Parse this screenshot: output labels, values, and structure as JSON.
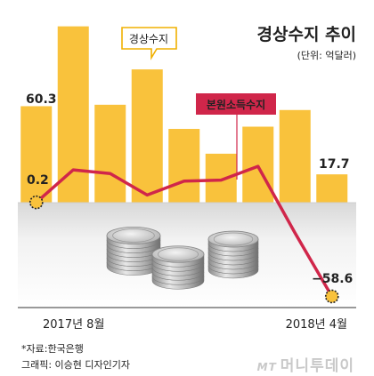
{
  "chart_data": {
    "type": "bar",
    "title": "경상수지 추이",
    "unit": "(단위: 억달러)",
    "x_start": "2017년 8월",
    "x_end": "2018년 4월",
    "ylim": [
      -75,
      120
    ],
    "series": [
      {
        "name": "경상수지",
        "type": "bar",
        "color": "#f9c23c",
        "values": [
          60.3,
          110.2,
          61.2,
          83.3,
          46.1,
          30.6,
          47.5,
          57.9,
          17.7
        ]
      },
      {
        "name": "본원소득수지",
        "type": "line",
        "color": "#d0264a",
        "values": [
          0.2,
          20.5,
          18.2,
          4.8,
          13.5,
          14.1,
          22.7,
          -18.9,
          -58.6
        ]
      }
    ],
    "labels": {
      "bar_first": "60.3",
      "bar_last": "17.7",
      "line_first": "0.2",
      "line_last": "−58.6"
    }
  },
  "source": "*자료:한국은행",
  "credit": "그래픽: 이승현 디자인기자",
  "logo": {
    "mark": "MT",
    "text": "머니투데이"
  }
}
